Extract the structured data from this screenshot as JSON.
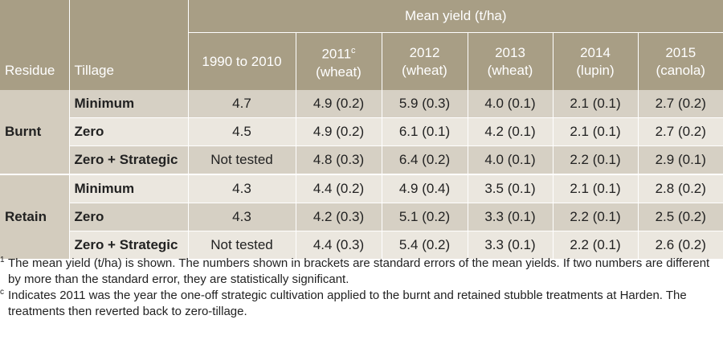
{
  "header": {
    "residue": "Residue",
    "tillage": "Tillage",
    "mean_yield": "Mean yield (t/ha)",
    "years": [
      {
        "year": "1990 to 2010",
        "crop": "",
        "sup": ""
      },
      {
        "year": "2011",
        "crop": "(wheat)",
        "sup": "c"
      },
      {
        "year": "2012",
        "crop": "(wheat)",
        "sup": ""
      },
      {
        "year": "2013",
        "crop": "(wheat)",
        "sup": ""
      },
      {
        "year": "2014",
        "crop": "(lupin)",
        "sup": ""
      },
      {
        "year": "2015",
        "crop": "(canola)",
        "sup": ""
      }
    ]
  },
  "groups": [
    {
      "residue": "Burnt",
      "rows": [
        {
          "tillage": "Minimum",
          "values": [
            "4.7",
            "4.9 (0.2)",
            "5.9 (0.3)",
            "4.0 (0.1)",
            "2.1 (0.1)",
            "2.7 (0.2)"
          ]
        },
        {
          "tillage": "Zero",
          "values": [
            "4.5",
            "4.9 (0.2)",
            "6.1 (0.1)",
            "4.2 (0.1)",
            "2.1 (0.1)",
            "2.7 (0.2)"
          ]
        },
        {
          "tillage": "Zero + Strategic",
          "values": [
            "Not tested",
            "4.8 (0.3)",
            "6.4 (0.2)",
            "4.0 (0.1)",
            "2.2 (0.1)",
            "2.9 (0.1)"
          ]
        }
      ]
    },
    {
      "residue": "Retain",
      "rows": [
        {
          "tillage": "Minimum",
          "values": [
            "4.3",
            "4.4 (0.2)",
            "4.9 (0.4)",
            "3.5 (0.1)",
            "2.1 (0.1)",
            "2.8 (0.2)"
          ]
        },
        {
          "tillage": "Zero",
          "values": [
            "4.3",
            "4.2 (0.3)",
            "5.1 (0.2)",
            "3.3 (0.1)",
            "2.2 (0.1)",
            "2.5 (0.2)"
          ]
        },
        {
          "tillage": "Zero + Strategic",
          "values": [
            "Not tested",
            "4.4 (0.3)",
            "5.4 (0.2)",
            "3.3 (0.1)",
            "2.2 (0.1)",
            "2.6 (0.2)"
          ]
        }
      ]
    }
  ],
  "footnotes": [
    {
      "marker": "1",
      "text": "The mean yield (t/ha) is shown. The numbers shown in brackets are standard errors of the mean yields. If two numbers are different by more than the standard error, they are statistically significant."
    },
    {
      "marker": "c",
      "text": "Indicates 2011 was the year the one-off strategic cultivation applied to the burnt and retained stubble treatments at Harden. The treatments then reverted back to zero-tillage."
    }
  ]
}
